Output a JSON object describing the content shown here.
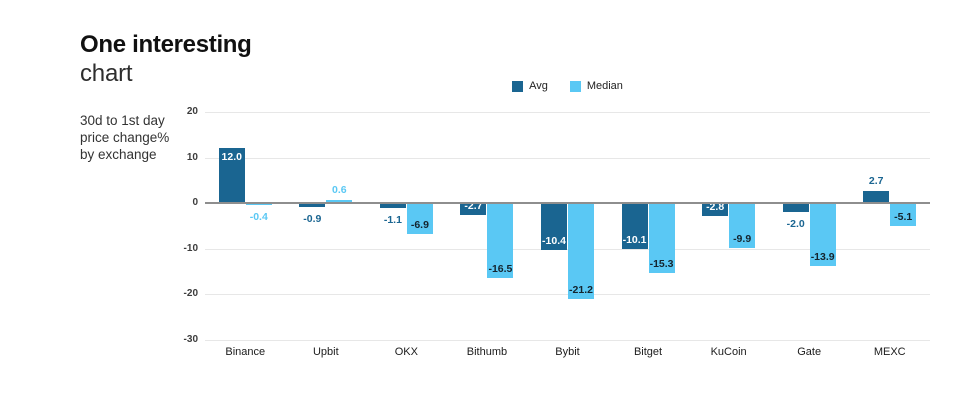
{
  "header": {
    "title_line1": "One interesting",
    "title_line2": "chart",
    "subtitle": "30d to 1st day price change% by exchange"
  },
  "chart_data": {
    "type": "bar",
    "title": "One interesting chart",
    "subtitle": "30d to 1st day price change% by exchange",
    "categories": [
      "Binance",
      "Upbit",
      "OKX",
      "Bithumb",
      "Bybit",
      "Bitget",
      "KuCoin",
      "Gate",
      "MEXC"
    ],
    "series": [
      {
        "name": "Avg",
        "color": "#1a6591",
        "values": [
          12.0,
          -0.9,
          -1.1,
          -2.7,
          -10.4,
          -10.1,
          -2.8,
          -2.0,
          2.7
        ],
        "label_pos": [
          "in",
          "out",
          "out",
          "in",
          "in",
          "in",
          "in",
          "out",
          "out"
        ]
      },
      {
        "name": "Median",
        "color": "#5ac8f4",
        "values": [
          -0.4,
          0.6,
          -6.9,
          -16.5,
          -21.2,
          -15.3,
          -9.9,
          -13.9,
          -5.1
        ],
        "label_pos": [
          "out",
          "out",
          "in",
          "in",
          "in",
          "in",
          "in",
          "in",
          "in"
        ]
      }
    ],
    "value_label_format": "one_decimal",
    "yticks": [
      20,
      10,
      0,
      -10,
      -20,
      -30
    ],
    "ylim": [
      -30,
      20
    ],
    "grid": true,
    "legend_position": "top-center",
    "colors": {
      "label_on_dark": "#ffffff",
      "label_on_light": "#14242e",
      "grid_line": "#e7e7e7",
      "zero_line": "#8e8e8e",
      "tick_text": "#3c3c3c",
      "category_text": "#1c1c1c"
    }
  }
}
